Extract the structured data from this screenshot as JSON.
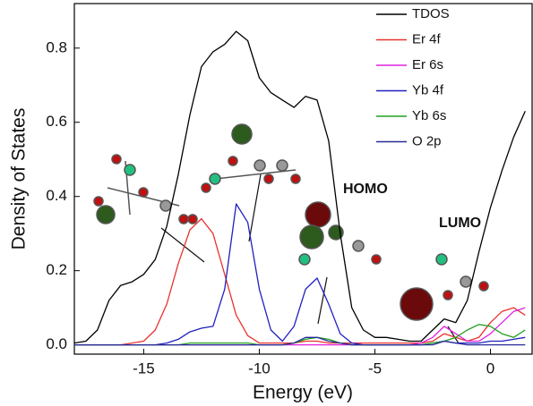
{
  "chart_data": {
    "type": "line",
    "x_label": "Energy (eV)",
    "y_label": "Density of States",
    "annotations": [
      "HOMO",
      "LUMO"
    ],
    "x": [
      -18,
      -17.5,
      -17,
      -16.5,
      -16,
      -15.5,
      -15,
      -14.5,
      -14,
      -13.5,
      -13,
      -12.5,
      -12,
      -11.5,
      -11,
      -10.5,
      -10,
      -9.5,
      -9,
      -8.5,
      -8,
      -7.5,
      -7,
      -6.5,
      -6,
      -5.5,
      -5,
      -4.5,
      -4,
      -3.5,
      -3,
      -2.5,
      -2,
      -1.5,
      -1,
      -0.5,
      0,
      0.5,
      1,
      1.5
    ],
    "series": [
      {
        "name": "TDOS",
        "color": "#000000",
        "values": [
          0.005,
          0.01,
          0.04,
          0.12,
          0.16,
          0.17,
          0.19,
          0.23,
          0.32,
          0.46,
          0.62,
          0.75,
          0.79,
          0.81,
          0.845,
          0.82,
          0.72,
          0.68,
          0.66,
          0.64,
          0.67,
          0.66,
          0.55,
          0.3,
          0.1,
          0.04,
          0.02,
          0.02,
          0.015,
          0.01,
          0.01,
          0.04,
          0.07,
          0.06,
          0.12,
          0.25,
          0.37,
          0.47,
          0.56,
          0.63
        ]
      },
      {
        "name": "Er 4f",
        "color": "#e8322d",
        "values": [
          0,
          0,
          0,
          0,
          0,
          0.005,
          0.01,
          0.04,
          0.11,
          0.22,
          0.31,
          0.34,
          0.3,
          0.19,
          0.08,
          0.025,
          0.005,
          0.005,
          0.005,
          0.005,
          0.01,
          0.01,
          0.005,
          0.005,
          0.005,
          0.005,
          0.005,
          0.005,
          0.005,
          0.005,
          0.005,
          0.01,
          0.03,
          0.02,
          0.01,
          0.02,
          0.06,
          0.09,
          0.1,
          0.08
        ]
      },
      {
        "name": "Er 6s",
        "color": "#e020e0",
        "values": [
          0,
          0,
          0,
          0,
          0,
          0,
          0,
          0,
          0,
          0,
          0,
          0,
          0,
          0,
          0,
          0,
          0,
          0,
          0,
          0,
          0,
          0,
          0,
          0,
          0,
          0,
          0,
          0,
          0,
          0,
          0.005,
          0.02,
          0.05,
          0.03,
          0.01,
          0.01,
          0.03,
          0.06,
          0.09,
          0.1
        ]
      },
      {
        "name": "Yb 4f",
        "color": "#2020c0",
        "values": [
          0,
          0,
          0,
          0,
          0,
          0,
          0,
          0,
          0.005,
          0.015,
          0.035,
          0.045,
          0.05,
          0.15,
          0.38,
          0.33,
          0.15,
          0.04,
          0.01,
          0.05,
          0.15,
          0.18,
          0.11,
          0.03,
          0.005,
          0,
          0,
          0,
          0,
          0,
          0,
          0.005,
          0.01,
          0.005,
          0.005,
          0.005,
          0.01,
          0.01,
          0.015,
          0.02
        ]
      },
      {
        "name": "Yb 6s",
        "color": "#20a020",
        "values": [
          0,
          0,
          0,
          0,
          0,
          0,
          0,
          0,
          0,
          0,
          0.005,
          0.005,
          0.005,
          0.005,
          0.005,
          0.005,
          0,
          0,
          0,
          0.005,
          0.015,
          0.02,
          0.015,
          0.005,
          0,
          0,
          0,
          0,
          0,
          0,
          0,
          0.005,
          0.01,
          0.02,
          0.04,
          0.055,
          0.05,
          0.03,
          0.02,
          0.04
        ]
      },
      {
        "name": "O 2p",
        "color": "#2a2a9a",
        "values": [
          0,
          0,
          0,
          0,
          0,
          0,
          0,
          0,
          0,
          0,
          0,
          0,
          0,
          0,
          0,
          0,
          0,
          0,
          0,
          0.005,
          0.02,
          0.02,
          0.01,
          0.005,
          0,
          0,
          0,
          0,
          0,
          0,
          0,
          0,
          0.01,
          0.005,
          0,
          0,
          0,
          0,
          0,
          0
        ]
      }
    ],
    "xlim": [
      -18,
      1.8
    ],
    "ylim": [
      -0.025,
      0.92
    ],
    "xticks": [
      -15,
      -10,
      -5,
      0
    ],
    "yticks": [
      {
        "value": 0,
        "label": "0.0"
      },
      0.2,
      0.4,
      0.6,
      0.8
    ],
    "grid": false,
    "legend": "upper right"
  }
}
